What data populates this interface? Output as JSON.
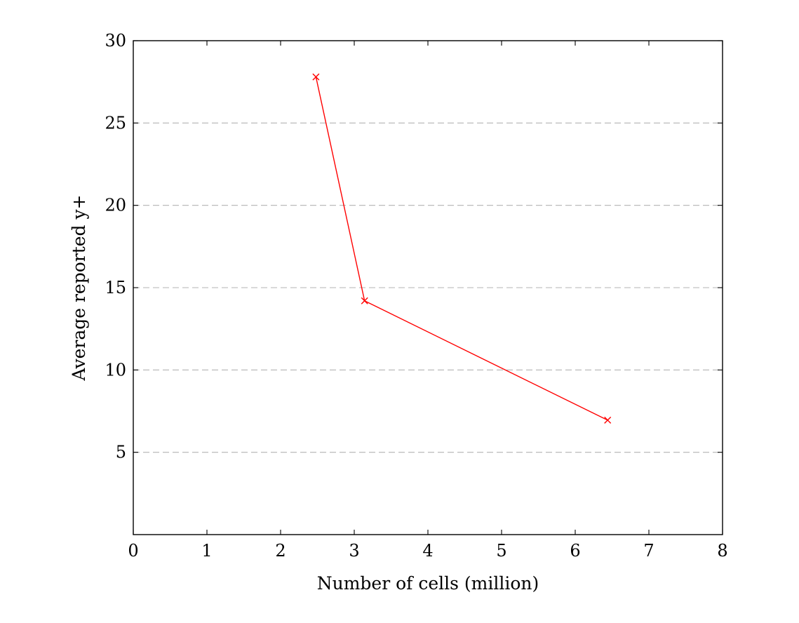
{
  "chart_data": {
    "type": "line",
    "title": "",
    "xlabel": "Number of cells (million)",
    "ylabel": "Average reported y+",
    "xlim": [
      0,
      8
    ],
    "ylim": [
      0,
      30
    ],
    "x_ticks": [
      "0",
      "1",
      "2",
      "3",
      "4",
      "5",
      "6",
      "7",
      "8"
    ],
    "y_ticks": [
      "5",
      "10",
      "15",
      "20",
      "25",
      "30"
    ],
    "grid": "horizontal-dashed",
    "legend": "none",
    "series": [
      {
        "color": "#ff0000",
        "marker": "x",
        "x": [
          2.48,
          3.14,
          6.44
        ],
        "y": [
          27.8,
          14.2,
          6.95
        ]
      }
    ]
  }
}
